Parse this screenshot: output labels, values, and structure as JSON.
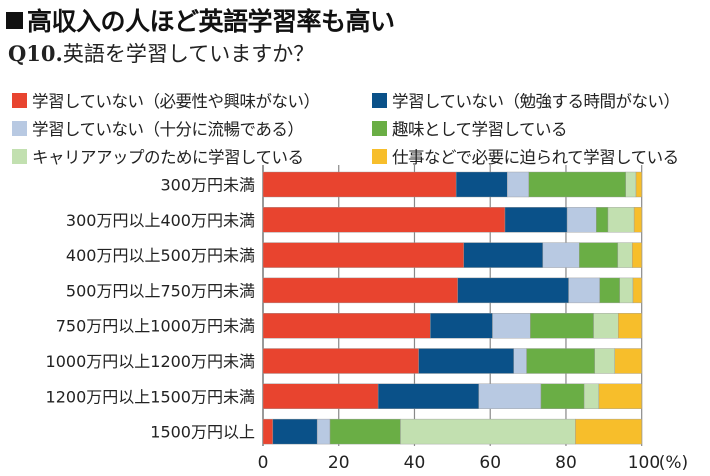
{
  "title": "高収入の人ほど英語学習率も高い",
  "subtitle_q": "Q10.",
  "subtitle": "英語を学習していますか？",
  "chart_data": {
    "type": "bar",
    "orientation": "horizontal",
    "stacked": true,
    "xlabel": "(%)",
    "xlim": [
      0,
      100
    ],
    "xticks": [
      "0",
      "20",
      "40",
      "60",
      "80",
      "100"
    ],
    "unit_label": "(%)",
    "legend_placement": "top",
    "categories": [
      "300万円未満",
      "300万円以上400万円未満",
      "400万円以上500万円未満",
      "500万円以上750万円未満",
      "750万円以上1000万円未満",
      "1000万円以上1200万円未満",
      "1200万円以上1500万円未満",
      "1500万円以上"
    ],
    "series": [
      {
        "name": "学習していない（必要性や興味がない）",
        "color": "#e8442f",
        "values": [
          51.0,
          63.9,
          53.0,
          51.4,
          44.2,
          41.1,
          30.4,
          2.6
        ]
      },
      {
        "name": "学習していない（勉強する時間がない）",
        "color": "#0a5189",
        "values": [
          13.5,
          16.4,
          20.9,
          29.3,
          16.4,
          25.1,
          26.6,
          11.7
        ]
      },
      {
        "name": "学習していない（十分に流暢である）",
        "color": "#b8c9e2",
        "values": [
          5.7,
          7.7,
          9.6,
          8.2,
          10.0,
          3.4,
          16.4,
          3.4
        ]
      },
      {
        "name": "趣味として学習している",
        "color": "#6aae45",
        "values": [
          25.6,
          3.1,
          10.2,
          5.3,
          16.7,
          18.0,
          11.4,
          18.6
        ]
      },
      {
        "name": "キャリアアップのために学習している",
        "color": "#c2e0b0",
        "values": [
          2.7,
          6.9,
          3.8,
          3.5,
          6.5,
          5.3,
          3.9,
          46.2
        ]
      },
      {
        "name": "仕事などで必要に迫られて学習している",
        "color": "#f7be2b",
        "values": [
          1.5,
          2.0,
          2.5,
          2.3,
          6.2,
          7.1,
          11.3,
          17.5
        ]
      }
    ]
  }
}
